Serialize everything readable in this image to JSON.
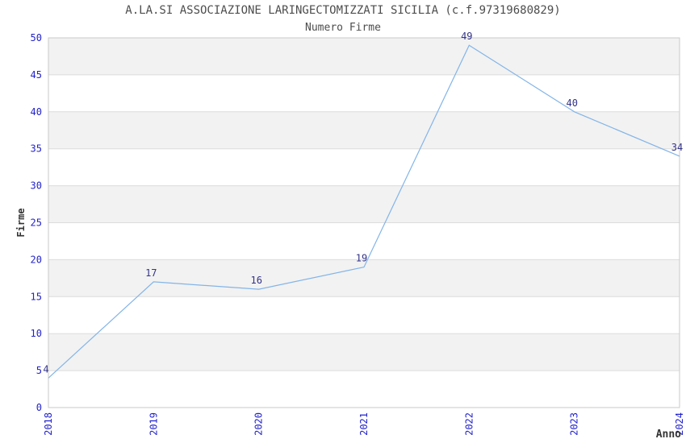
{
  "chart_data": {
    "type": "line",
    "title": "A.LA.SI ASSOCIAZIONE LARINGECTOMIZZATI SICILIA (c.f.97319680829)",
    "subtitle": "Numero Firme",
    "xlabel": "Anno",
    "ylabel": "Firme",
    "categories": [
      "2018",
      "2019",
      "2020",
      "2021",
      "2022",
      "2023",
      "2024"
    ],
    "series": [
      {
        "name": "Numero Firme",
        "values": [
          4,
          17,
          16,
          19,
          49,
          40,
          34
        ]
      }
    ],
    "ylim": [
      0,
      50
    ],
    "ytick_step": 5,
    "yticks": [
      0,
      5,
      10,
      15,
      20,
      25,
      30,
      35,
      40,
      45,
      50
    ],
    "grid": "alternating horizontal bands every 5 units, gridlines at each tick",
    "legend": "none",
    "data_labels": true,
    "x_tick_rotation_deg": 90,
    "colors": {
      "line": "#82b4e8",
      "tick_label": "#2222cc",
      "data_label": "#333388",
      "title_text": "#4d4d4d",
      "axis_title_text": "#333333",
      "band_fill": "#f2f2f2",
      "grid_line": "#dcdcdc",
      "plot_border": "#c9c9c9",
      "background": "#ffffff"
    }
  }
}
